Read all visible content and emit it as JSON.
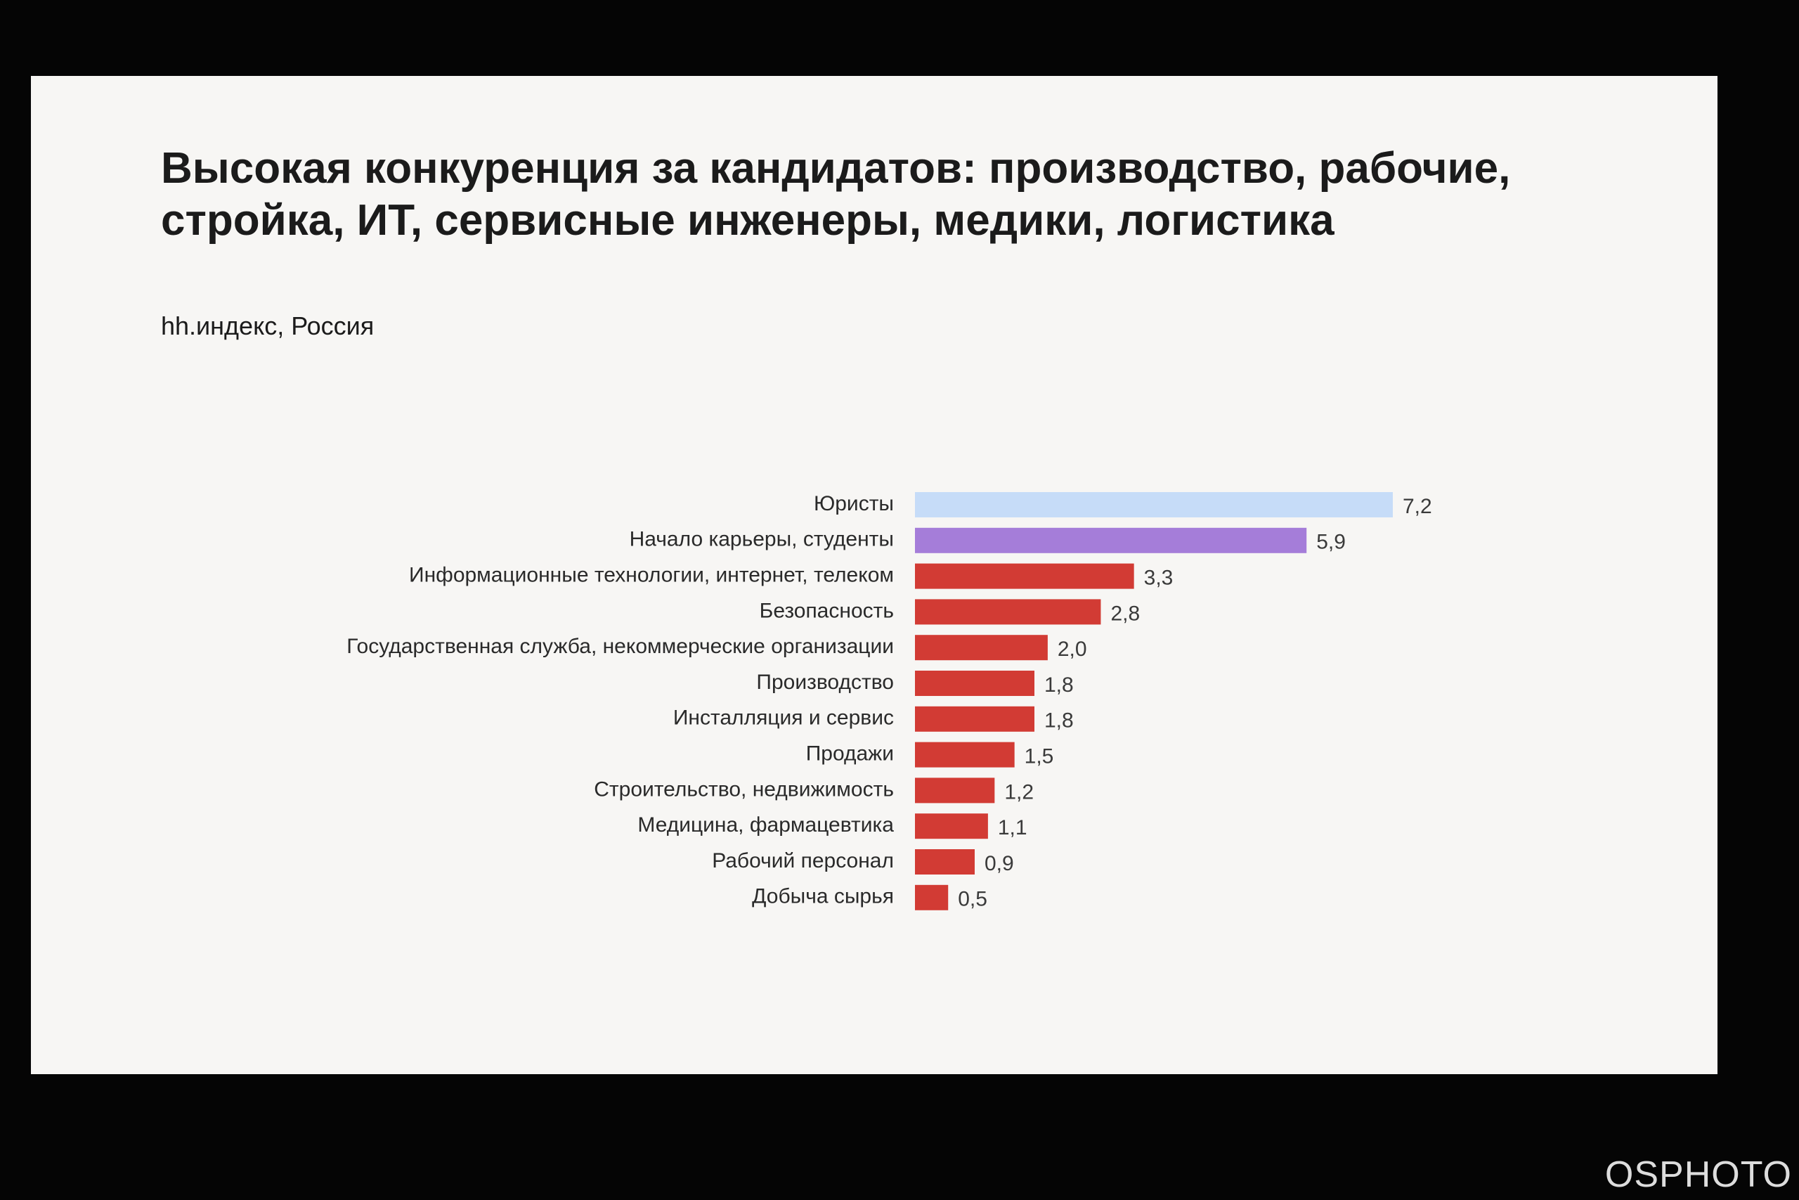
{
  "chart_data": {
    "type": "hbar",
    "title": "Высокая конкуренция за кандидатов: производство, рабочие, стройка, ИТ, сервисные инженеры, медики, логистика",
    "subtitle": "hh.индекс, Россия",
    "categories": [
      "Юристы",
      "Начало карьеры, студенты",
      "Информационные технологии, интернет, телеком",
      "Безопасность",
      "Государственная служба, некоммерческие организации",
      "Производство",
      "Инсталляция и сервис",
      "Продажи",
      "Строительство, недвижимость",
      "Медицина, фармацевтика",
      "Рабочий персонал",
      "Добыча сырья"
    ],
    "values": [
      7.2,
      5.9,
      3.3,
      2.8,
      2.0,
      1.8,
      1.8,
      1.5,
      1.2,
      1.1,
      0.9,
      0.5
    ],
    "value_labels": [
      "7,2",
      "5,9",
      "3,3",
      "2,8",
      "2,0",
      "1,8",
      "1,8",
      "1,5",
      "1,2",
      "1,1",
      "0,9",
      "0,5"
    ],
    "colors": [
      "#c6dcf8",
      "#a57dd9",
      "#d23b34",
      "#d23b34",
      "#d23b34",
      "#d23b34",
      "#d23b34",
      "#d23b34",
      "#d23b34",
      "#d23b34",
      "#d23b34",
      "#d23b34"
    ]
  },
  "watermark": "OSPHOTO"
}
